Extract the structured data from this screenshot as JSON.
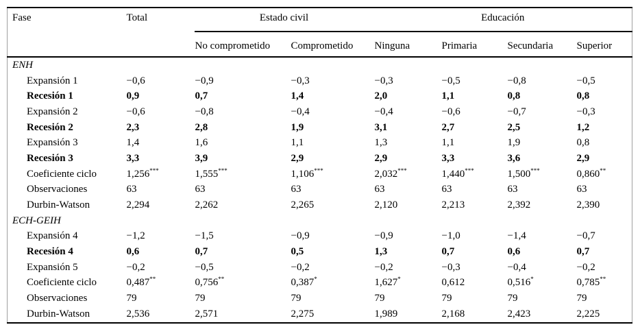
{
  "table": {
    "col_fase": "Fase",
    "col_total": "Total",
    "groups": [
      {
        "label": "Estado civil",
        "cols": [
          "No comprometido",
          "Comprometido"
        ]
      },
      {
        "label": "Educación",
        "cols": [
          "Ninguna",
          "Primaria",
          "Secundaria",
          "Superior"
        ]
      }
    ],
    "rows": [
      {
        "type": "section",
        "label": "ENH"
      },
      {
        "type": "data",
        "bold": false,
        "label": "Expansión 1",
        "values": [
          "−0,6",
          "−0,9",
          "−0,3",
          "−0,3",
          "−0,5",
          "−0,8",
          "−0,5"
        ]
      },
      {
        "type": "data",
        "bold": true,
        "label": "Recesión 1",
        "values": [
          "0,9",
          "0,7",
          "1,4",
          "2,0",
          "1,1",
          "0,8",
          "0,8"
        ]
      },
      {
        "type": "data",
        "bold": false,
        "label": "Expansión 2",
        "values": [
          "−0,6",
          "−0,8",
          "−0,4",
          "−0,4",
          "−0,6",
          "−0,7",
          "−0,3"
        ]
      },
      {
        "type": "data",
        "bold": true,
        "label": "Recesión 2",
        "values": [
          "2,3",
          "2,8",
          "1,9",
          "3,1",
          "2,7",
          "2,5",
          "1,2"
        ]
      },
      {
        "type": "data",
        "bold": false,
        "label": "Expansión 3",
        "values": [
          "1,4",
          "1,6",
          "1,1",
          "1,3",
          "1,1",
          "1,9",
          "0,8"
        ]
      },
      {
        "type": "data",
        "bold": true,
        "label": "Recesión 3",
        "values": [
          "3,3",
          "3,9",
          "2,9",
          "2,9",
          "3,3",
          "3,6",
          "2,9"
        ]
      },
      {
        "type": "data",
        "bold": false,
        "label": "Coeficiente ciclo",
        "values": [
          "1,256***",
          "1,555***",
          "1,106***",
          "2,032***",
          "1,440***",
          "1,500***",
          "0,860**"
        ]
      },
      {
        "type": "data",
        "bold": false,
        "label": "Observaciones",
        "values": [
          "63",
          "63",
          "63",
          "63",
          "63",
          "63",
          "63"
        ]
      },
      {
        "type": "data",
        "bold": false,
        "label": "Durbin-Watson",
        "values": [
          "2,294",
          "2,262",
          "2,265",
          "2,120",
          "2,213",
          "2,392",
          "2,390"
        ]
      },
      {
        "type": "section",
        "label": "ECH-GEIH"
      },
      {
        "type": "data",
        "bold": false,
        "label": "Expansión 4",
        "values": [
          "−1,2",
          "−1,5",
          "−0,9",
          "−0,9",
          "−1,0",
          "−1,4",
          "−0,7"
        ]
      },
      {
        "type": "data",
        "bold": true,
        "label": "Recesión 4",
        "values": [
          "0,6",
          "0,7",
          "0,5",
          "1,3",
          "0,7",
          "0,6",
          "0,7"
        ]
      },
      {
        "type": "data",
        "bold": false,
        "label": "Expansión 5",
        "values": [
          "−0,2",
          "−0,5",
          "−0,2",
          "−0,2",
          "−0,3",
          "−0,4",
          "−0,2"
        ]
      },
      {
        "type": "data",
        "bold": false,
        "label": "Coeficiente ciclo",
        "values": [
          "0,487**",
          "0,756**",
          "0,387*",
          "1,627*",
          "0,612",
          "0,516*",
          "0,785**"
        ]
      },
      {
        "type": "data",
        "bold": false,
        "label": "Observaciones",
        "values": [
          "79",
          "79",
          "79",
          "79",
          "79",
          "79",
          "79"
        ]
      },
      {
        "type": "data",
        "bold": false,
        "label": "Durbin-Watson",
        "values": [
          "2,536",
          "2,571",
          "2,275",
          "1,989",
          "2,168",
          "2,423",
          "2,225"
        ]
      }
    ],
    "colors": {
      "text": "#000000",
      "rule": "#000000",
      "frame": "#9f9f9f",
      "background": "#ffffff"
    }
  }
}
